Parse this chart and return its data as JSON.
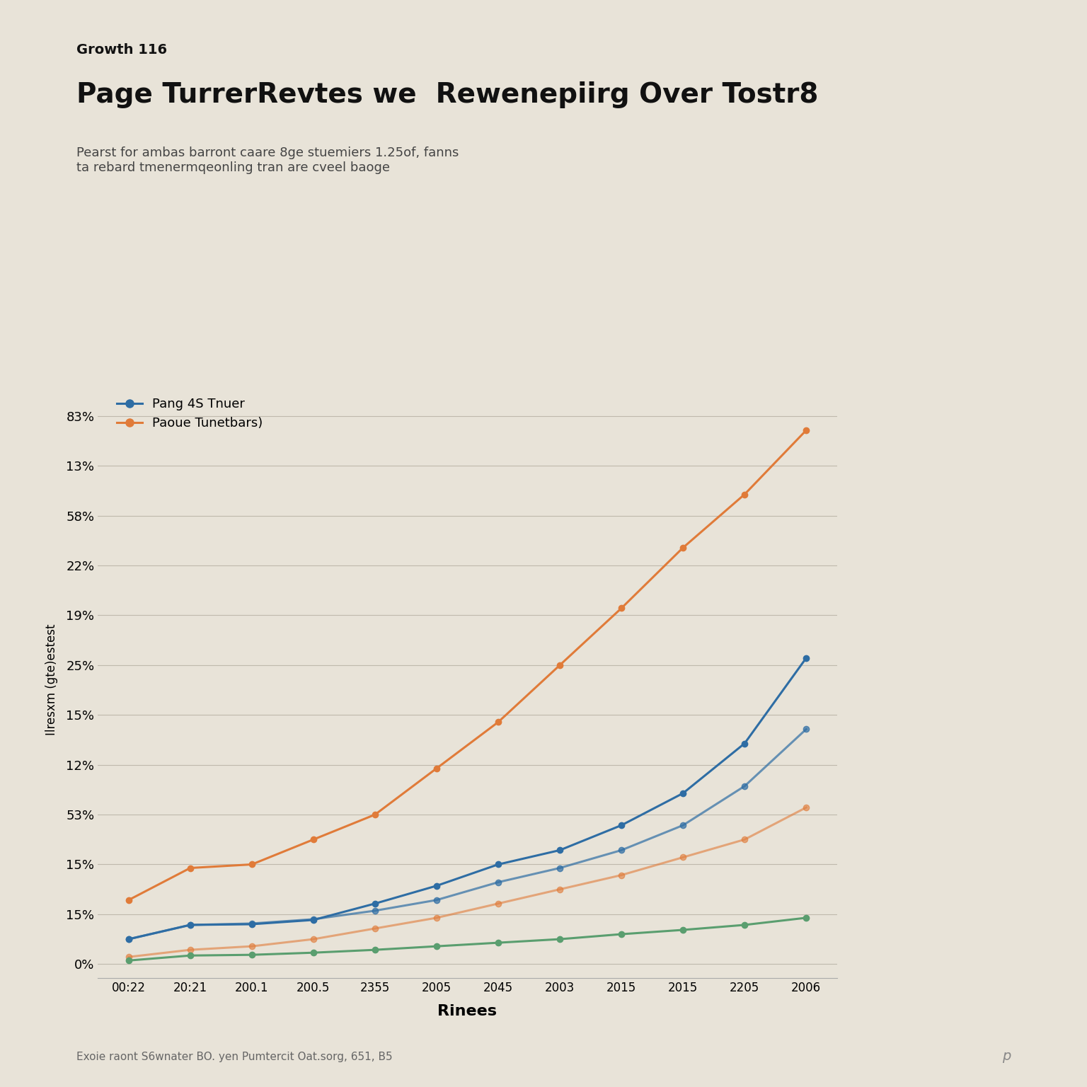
{
  "title_label": "Growth 116",
  "title": "Page TurrerRevtes we  Rewenepiirg Over Tostr8",
  "subtitle": "Pearst for ambas barront caare 8ge stuemiers 1.25of, fanns\nta rebard tmenermqeonling tran are cveel baoge",
  "xlabel": "Rinees",
  "ylabel": "Ilresxm (gte)estest",
  "bg_color": "#e8e3d8",
  "plot_bg_color": "#e8e3d8",
  "months": [
    1,
    2,
    3,
    4,
    5,
    6,
    7,
    8,
    9,
    10,
    11,
    12
  ],
  "month_labels": [
    "00:22",
    "20:21",
    "200.1",
    "200.5",
    "2355",
    "2005",
    "2045",
    "2003",
    "2015",
    "2015",
    "2205",
    "2006"
  ],
  "line1_blue_high": [
    3.5,
    5.5,
    5.6,
    6.2,
    8.5,
    11.0,
    14.0,
    16.0,
    19.5,
    24.0,
    31.0,
    43.0
  ],
  "line2_orange_high": [
    9.0,
    13.5,
    14.0,
    17.5,
    21.0,
    27.5,
    34.0,
    42.0,
    50.0,
    58.5,
    66.0,
    75.0
  ],
  "line3_blue_low": [
    3.5,
    5.5,
    5.7,
    6.3,
    7.5,
    9.0,
    11.5,
    13.5,
    16.0,
    19.5,
    25.0,
    33.0
  ],
  "line4_orange_low": [
    1.0,
    2.0,
    2.5,
    3.5,
    5.0,
    6.5,
    8.5,
    10.5,
    12.5,
    15.0,
    17.5,
    22.0
  ],
  "line5_green": [
    0.5,
    1.2,
    1.3,
    1.6,
    2.0,
    2.5,
    3.0,
    3.5,
    4.2,
    4.8,
    5.5,
    6.5
  ],
  "color_blue_dark": "#2e6da4",
  "color_orange": "#e07b39",
  "color_blue_light": "#5b9bbf",
  "color_green": "#5a9e6f",
  "legend_label1": "Pang 4S Tnuer",
  "legend_label2": "Paoue Tunetbars)",
  "ytick_positions": [
    0,
    7,
    14,
    21,
    28,
    35,
    42,
    49,
    56,
    63,
    70,
    77
  ],
  "ytick_labels": [
    "0%",
    "15%",
    "15%",
    "53%",
    "12%",
    "15%",
    "25%",
    "19%",
    "22%",
    "58%",
    "13%",
    "83%"
  ],
  "ylim": [
    -2,
    82
  ],
  "xlim": [
    0.5,
    12.5
  ],
  "footer": "Exoie raont S6wnater BO. yen Pumtercit Oat.sorg, 651, B5",
  "footer_right": "p"
}
